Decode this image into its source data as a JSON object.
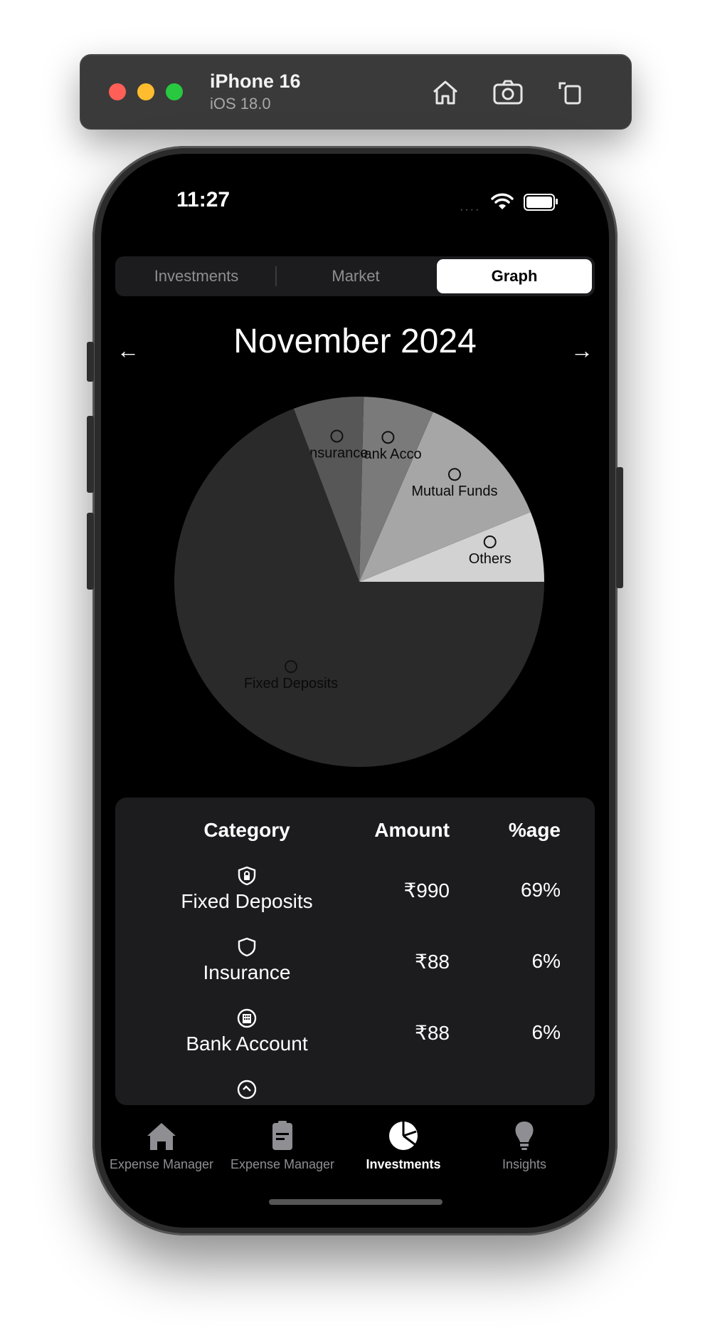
{
  "simulator": {
    "device_name": "iPhone 16",
    "os_version": "iOS 18.0"
  },
  "status_bar": {
    "time": "11:27",
    "signal_dots": "····"
  },
  "segmented_control": {
    "tabs": [
      "Investments",
      "Market",
      "Graph"
    ],
    "selected": "Graph"
  },
  "period": {
    "title": "November 2024",
    "prev_label": "←",
    "next_label": "→"
  },
  "chart_data": {
    "type": "pie",
    "slices": [
      {
        "label": "Fixed Deposits",
        "value": 990,
        "percent": 69,
        "color": "#2a2a2a"
      },
      {
        "label": "Insurance",
        "value": 88,
        "percent": 6,
        "color": "#575757"
      },
      {
        "label": "Bank Account",
        "value": 88,
        "percent": 6,
        "color": "#7a7a7a"
      },
      {
        "label": "Mutual Funds",
        "value": 176,
        "percent": 12,
        "color": "#a6a6a6"
      },
      {
        "label": "Others",
        "value": 88,
        "percent": 6,
        "color": "#d2d2d2"
      }
    ],
    "slice_labels_shown": [
      "Fixed Deposits",
      "Insurance",
      "Bank Acco",
      "Mutual Funds",
      "Others"
    ]
  },
  "table": {
    "headers": {
      "category": "Category",
      "amount": "Amount",
      "percent": "%age"
    },
    "rows": [
      {
        "category": "Fixed Deposits",
        "amount": "₹990",
        "percent": "69%",
        "icon": "shield-lock-icon"
      },
      {
        "category": "Insurance",
        "amount": "₹88",
        "percent": "6%",
        "icon": "shield-icon"
      },
      {
        "category": "Bank Account",
        "amount": "₹88",
        "percent": "6%",
        "icon": "bank-building-icon"
      }
    ]
  },
  "tab_bar": {
    "items": [
      {
        "label": "Expense Manager",
        "icon": "house-icon"
      },
      {
        "label": "Expense Manager",
        "icon": "clipboard-icon"
      },
      {
        "label": "Investments",
        "icon": "pie-chart-icon",
        "active": true
      },
      {
        "label": "Insights",
        "icon": "lightbulb-icon"
      }
    ]
  },
  "colors": {
    "background": "#000000",
    "card": "#1c1c1e",
    "active_tab": "#ffffff",
    "inactive_tab": "#8e8e93"
  }
}
